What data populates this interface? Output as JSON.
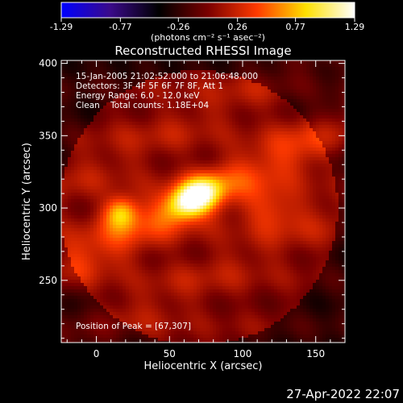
{
  "chart_data": {
    "type": "heatmap",
    "title": "Reconstructed RHESSI Image",
    "xlabel": "Heliocentric X (arcsec)",
    "ylabel": "Heliocentric Y (arcsec)",
    "xlim": [
      -24,
      170
    ],
    "ylim": [
      207,
      402
    ],
    "xticks": [
      0,
      50,
      100,
      150
    ],
    "yticks": [
      250,
      300,
      350,
      400
    ],
    "colorbar": {
      "range": [
        -1.29,
        1.29
      ],
      "tick_labels": [
        "-1.29",
        "-0.77",
        "-0.26",
        "0.26",
        "0.77",
        "1.29"
      ],
      "unit_label": "(photons cm⁻² s⁻¹ asec⁻²)",
      "colors": [
        "#0000ff",
        "#3a0a8a",
        "#000000",
        "#7a0000",
        "#ff3a00",
        "#ffe000",
        "#ffffff"
      ]
    },
    "annotations": [
      "15-Jan-2005 21:02:52.000 to 21:06:48.000",
      "Detectors: 3F 4F 5F 6F 7F 8F, Att 1",
      "Energy Range: 6.0 - 12.0 keV",
      "Clean    Total counts: 1.18E+04"
    ],
    "peak_label": "Position of Peak = [67,307]",
    "peak_position": [
      67,
      307
    ],
    "sources": [
      {
        "x": 67,
        "y": 307,
        "peak": 1.29
      },
      {
        "x": 17,
        "y": 297,
        "peak": 0.72
      },
      {
        "x": 120,
        "y": 300,
        "peak": 0.35
      }
    ]
  },
  "footer": {
    "date": "27-Apr-2022 22:07"
  }
}
